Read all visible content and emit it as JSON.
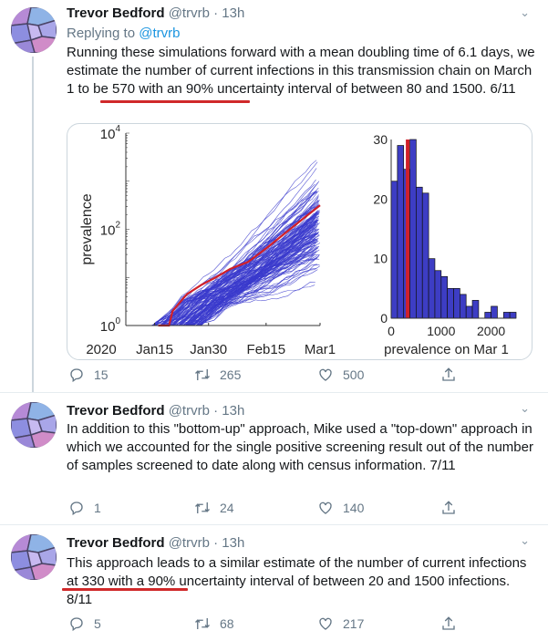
{
  "tweets": [
    {
      "author": "Trevor Bedford",
      "handle": "@trvrb",
      "time": "· 13h",
      "replying_label": "Replying to",
      "replying_handle": "@trvrb",
      "text": "Running these simulations forward with a mean doubling time of 6.1 days, we estimate the number of current infections in this transmission chain on March 1 to be 570 with an 90% uncertainty interval of between 80 and 1500. 6/11",
      "replies": "15",
      "retweets": "265",
      "likes": "500"
    },
    {
      "author": "Trevor Bedford",
      "handle": "@trvrb",
      "time": "· 13h",
      "text": "In addition to this \"bottom-up\" approach, Mike used a \"top-down\" approach in which we accounted for the single positive screening result out of the number of samples screened to date along with census information. 7/11",
      "replies": "1",
      "retweets": "24",
      "likes": "140"
    },
    {
      "author": "Trevor Bedford",
      "handle": "@trvrb",
      "time": "· 13h",
      "text": "This approach leads to a similar estimate of the number of current infections at 330 with a 90% uncertainty interval of between 20 and 1500 infections. 8/11",
      "replies": "5",
      "retweets": "68",
      "likes": "217"
    }
  ],
  "icons": {
    "reply": "reply-icon",
    "retweet": "retweet-icon",
    "like": "heart-icon",
    "share": "share-icon",
    "more": "chevron-down-icon"
  },
  "colors": {
    "simulation": "#3a3acc",
    "median": "#d0202a",
    "highlight": "#d0292a",
    "link": "#1b95e0"
  },
  "chart_data": [
    {
      "type": "line",
      "ylabel": "prevalence",
      "yscale": "log",
      "ylim": [
        1,
        10000
      ],
      "yticks": [
        "10^0",
        "10^2",
        "10^4"
      ],
      "ytick_labels": {
        "base": "10",
        "exps": [
          "0",
          "2",
          "4"
        ]
      },
      "year_label": "2020",
      "xticks": [
        "Jan15",
        "Jan30",
        "Feb15",
        "Mar1"
      ],
      "xlim": [
        "2020-01-07",
        "2020-03-01"
      ],
      "median_series": {
        "x": [
          "2020-01-16",
          "2020-01-19",
          "2020-01-20",
          "2020-01-22",
          "2020-01-24",
          "2020-01-28",
          "2020-02-01",
          "2020-02-05",
          "2020-02-10",
          "2020-02-15",
          "2020-02-20",
          "2020-02-25",
          "2020-03-01"
        ],
        "y": [
          1,
          1,
          2,
          3,
          4.5,
          7,
          10,
          15,
          21,
          40,
          80,
          160,
          316
        ]
      },
      "ensemble": "many simulated trajectories (blue) from ~Jan 15 to Mar 1, ending between ~20 and ~3000"
    },
    {
      "type": "bar",
      "xlabel": "prevalence on Mar 1",
      "xticks": [
        "0",
        "1000",
        "2000"
      ],
      "yticks": [
        "0",
        "10",
        "20",
        "30"
      ],
      "xlim": [
        0,
        2500
      ],
      "ylim": [
        0,
        30
      ],
      "bin_width": 125,
      "values": [
        23,
        29,
        25,
        30,
        22,
        21,
        10,
        8,
        7,
        5,
        5,
        4,
        2,
        3,
        0,
        1,
        2,
        0,
        1,
        1
      ],
      "median_marker": 330
    }
  ]
}
